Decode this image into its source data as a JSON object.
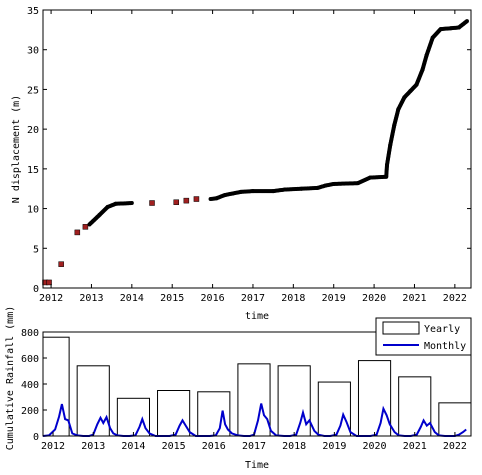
{
  "chart_data": [
    {
      "type": "scatter",
      "title": "",
      "xlabel": "time",
      "ylabel": "N displacement (m)",
      "xlim": [
        2011.8,
        2022.4
      ],
      "ylim": [
        0,
        35
      ],
      "xticks": [
        "2012",
        "2013",
        "2014",
        "2015",
        "2016",
        "2017",
        "2018",
        "2019",
        "2020",
        "2021",
        "2022"
      ],
      "yticks": [
        "0",
        "5",
        "10",
        "15",
        "20",
        "25",
        "30",
        "35"
      ],
      "grid": false,
      "series": [
        {
          "marker": "square",
          "color": "#a02020",
          "points": [
            [
              2011.85,
              0.7
            ],
            [
              2011.95,
              0.7
            ],
            [
              2012.25,
              3.0
            ],
            [
              2012.65,
              7.0
            ],
            [
              2012.85,
              7.7
            ],
            [
              2014.5,
              10.7
            ],
            [
              2015.1,
              10.8
            ],
            [
              2015.35,
              11.0
            ],
            [
              2015.6,
              11.2
            ]
          ]
        },
        {
          "marker": "dense-line",
          "color": "#000000",
          "points": [
            [
              2012.95,
              8.0
            ],
            [
              2013.2,
              9.2
            ],
            [
              2013.4,
              10.2
            ],
            [
              2013.6,
              10.6
            ],
            [
              2014.0,
              10.7
            ],
            [
              2015.95,
              11.2
            ],
            [
              2016.1,
              11.3
            ],
            [
              2016.3,
              11.7
            ],
            [
              2016.5,
              11.9
            ],
            [
              2016.7,
              12.1
            ],
            [
              2017.0,
              12.2
            ],
            [
              2017.5,
              12.2
            ],
            [
              2017.8,
              12.4
            ],
            [
              2018.2,
              12.5
            ],
            [
              2018.6,
              12.6
            ],
            [
              2018.8,
              12.9
            ],
            [
              2019.0,
              13.1
            ],
            [
              2019.6,
              13.2
            ],
            [
              2019.9,
              13.9
            ],
            [
              2020.3,
              14.0
            ],
            [
              2020.32,
              15.5
            ],
            [
              2020.4,
              18.0
            ],
            [
              2020.5,
              20.5
            ],
            [
              2020.6,
              22.5
            ],
            [
              2020.75,
              24.0
            ],
            [
              2020.9,
              24.8
            ],
            [
              2021.05,
              25.6
            ],
            [
              2021.2,
              27.5
            ],
            [
              2021.3,
              29.3
            ],
            [
              2021.45,
              31.5
            ],
            [
              2021.65,
              32.6
            ],
            [
              2021.9,
              32.7
            ],
            [
              2022.1,
              32.8
            ],
            [
              2022.3,
              33.6
            ]
          ]
        }
      ]
    },
    {
      "type": "bar",
      "title": "",
      "xlabel": "Time",
      "ylabel": "Cumulative Rainfall (mm)",
      "xlim": [
        2011.75,
        2022.4
      ],
      "ylim": [
        0,
        800
      ],
      "yticks": [
        "0",
        "200",
        "400",
        "600",
        "800"
      ],
      "xticks": [
        "2012",
        "2013",
        "2014",
        "2015",
        "2016",
        "2017",
        "2018",
        "2019",
        "2020",
        "2021",
        "2022"
      ],
      "legend": {
        "placement": "top-right",
        "entries": [
          "Yearly",
          "Monthly"
        ]
      },
      "series": [
        {
          "name": "Yearly",
          "style": "hollow-bar",
          "categories": [
            "2012",
            "2013",
            "2014",
            "2015",
            "2016",
            "2017",
            "2018",
            "2019",
            "2020",
            "2021",
            "2022"
          ],
          "values": [
            760,
            540,
            290,
            350,
            340,
            555,
            540,
            415,
            580,
            455,
            255
          ]
        },
        {
          "name": "Monthly",
          "style": "line",
          "color": "#0000cc",
          "x": [
            2011.75,
            2011.9,
            2012.05,
            2012.15,
            2012.22,
            2012.3,
            2012.38,
            2012.48,
            2012.6,
            2012.75,
            2012.9,
            2013.0,
            2013.1,
            2013.18,
            2013.25,
            2013.33,
            2013.42,
            2013.5,
            2013.6,
            2013.75,
            2013.9,
            2014.05,
            2014.15,
            2014.22,
            2014.3,
            2014.4,
            2014.55,
            2014.75,
            2014.9,
            2015.05,
            2015.15,
            2015.22,
            2015.3,
            2015.4,
            2015.55,
            2015.75,
            2015.9,
            2016.05,
            2016.15,
            2016.22,
            2016.28,
            2016.35,
            2016.45,
            2016.6,
            2016.75,
            2016.9,
            2017.0,
            2017.1,
            2017.18,
            2017.25,
            2017.33,
            2017.42,
            2017.55,
            2017.75,
            2017.9,
            2018.05,
            2018.15,
            2018.22,
            2018.3,
            2018.38,
            2018.5,
            2018.6,
            2018.75,
            2018.9,
            2019.05,
            2019.15,
            2019.22,
            2019.3,
            2019.4,
            2019.55,
            2019.75,
            2019.9,
            2020.05,
            2020.15,
            2020.22,
            2020.3,
            2020.38,
            2020.5,
            2020.6,
            2020.75,
            2020.9,
            2021.05,
            2021.15,
            2021.22,
            2021.3,
            2021.38,
            2021.5,
            2021.6,
            2021.75,
            2021.9,
            2022.0,
            2022.1,
            2022.2,
            2022.28
          ],
          "values": [
            0,
            5,
            50,
            150,
            245,
            130,
            120,
            20,
            5,
            0,
            0,
            10,
            90,
            140,
            100,
            145,
            60,
            20,
            5,
            0,
            0,
            5,
            70,
            130,
            60,
            20,
            0,
            0,
            0,
            10,
            80,
            120,
            80,
            30,
            0,
            0,
            0,
            5,
            60,
            195,
            90,
            50,
            20,
            5,
            0,
            0,
            10,
            120,
            250,
            160,
            130,
            40,
            5,
            0,
            0,
            10,
            100,
            180,
            90,
            120,
            40,
            10,
            0,
            0,
            10,
            80,
            165,
            110,
            30,
            0,
            0,
            0,
            10,
            100,
            210,
            160,
            90,
            30,
            5,
            0,
            0,
            10,
            70,
            120,
            80,
            100,
            30,
            5,
            0,
            0,
            0,
            10,
            30,
            50
          ]
        }
      ]
    }
  ]
}
